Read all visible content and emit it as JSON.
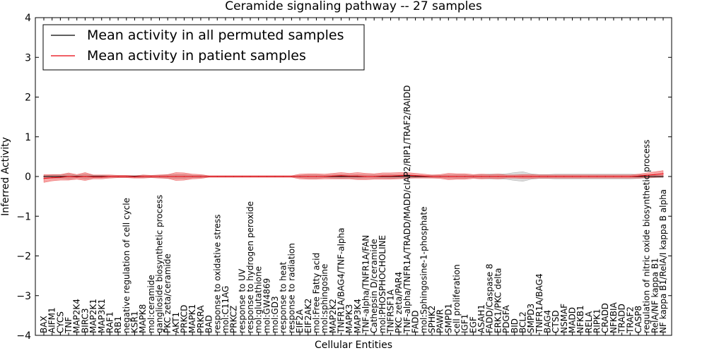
{
  "chart_data": {
    "type": "line",
    "title": "Ceramide signaling pathway -- 27 samples",
    "xlabel": "Cellular Entities",
    "ylabel": "Inferred Activity",
    "ylim": [
      -4,
      4
    ],
    "yticks": [
      4,
      3,
      2,
      1,
      0,
      -1,
      -2,
      -3,
      -4
    ],
    "ytick_labels": [
      "4",
      "3",
      "2",
      "1",
      "0",
      "−1",
      "−2",
      "−3",
      "−4"
    ],
    "legend_position": "top-left",
    "categories": [
      "BAX",
      "AIFM1",
      "CYCS",
      "TNF",
      "MAP2K4",
      "BIRC3",
      "MAP2K1",
      "MAP3K1",
      "RAF1",
      "RB1",
      "negative regulation of cell cycle",
      "KSR1",
      "MAPK8",
      "mol:ceramide",
      "ganglioside biosynthetic process",
      "PKC zeta/ceramide",
      "AKT1",
      "PRKCD",
      "MAPK1",
      "PRKRA",
      "BAD",
      "response to oxidative stress",
      "mol:C11AG",
      "PRKCZ",
      "response to UV",
      "response to hydrogen peroxide",
      "mol:glutathione",
      "mol:GW4869",
      "mol:GD3",
      "response to heat",
      "response to radiation",
      "EIF2A",
      "EIF2AK2",
      "mol:Free Fatty acid",
      "mol:sphingosine",
      "MAP2K2",
      "TNFR1A/BAG4/TNF-alpha",
      "MAPK3",
      "MAP3K4",
      "TNF-alpha/TNFR1A/FAN",
      "Cathepsin D/ceramide",
      "mol:PHOSPHOCHOLINE",
      "TNFRSF1A",
      "PKC zeta/PAR4",
      "TNF-alpha/TNFR1A/TRADD/MADD/cIAP2/RIP1/TRAF2/RAIDD",
      "FADD",
      "mol:Sphingosine-1-phosphate",
      "SPHK2",
      "PAWR",
      "SMPD1",
      "cell proliferation",
      "IGF1",
      "EGF",
      "ASAH1",
      "FADD/Caspase 8",
      "ERK1/PKC delta",
      "PDGFA",
      "BID",
      "BCL2",
      "SMPD3",
      "TNFR1A/BAG4",
      "BAG4",
      "CTSD",
      "NSMAF",
      "MADD",
      "NFKB1",
      "RELA",
      "RIPK1",
      "CRADD",
      "NFKBIA",
      "TRADD",
      "TRAF2",
      "CASP8",
      "regulation of nitric oxide biosynthetic process",
      "RelA/NF kappa B1",
      "NF kappa B1/RelA/I kappa B alpha"
    ],
    "series": [
      {
        "name": "Mean activity in all permuted samples",
        "color": "#000000",
        "values": [
          0,
          0,
          0,
          0,
          0,
          0,
          0,
          0,
          0,
          0,
          0,
          0,
          0,
          0,
          0,
          0,
          0,
          0,
          0,
          0,
          0,
          0,
          0,
          0,
          0,
          0,
          0,
          0,
          0,
          0,
          0,
          0,
          0,
          0,
          0,
          0,
          0,
          0,
          0,
          0,
          0,
          0,
          0,
          0,
          0,
          0,
          0,
          0,
          0,
          0,
          0,
          0,
          0,
          0,
          0,
          0,
          0,
          0,
          0,
          0,
          0,
          0,
          0,
          0,
          0,
          0,
          0,
          0,
          0,
          0,
          0,
          0,
          0,
          0,
          0,
          0
        ],
        "band": [
          0.02,
          0.04,
          0.04,
          0.06,
          0.03,
          0.06,
          0.03,
          0.03,
          0.02,
          0.02,
          0.02,
          0.02,
          0.03,
          0.02,
          0.03,
          0.04,
          0.05,
          0.05,
          0.03,
          0.03,
          0.01,
          0.01,
          0.01,
          0.01,
          0.01,
          0.01,
          0.01,
          0.01,
          0.01,
          0.01,
          0.01,
          0.03,
          0.04,
          0.04,
          0.03,
          0.04,
          0.05,
          0.04,
          0.05,
          0.04,
          0.04,
          0.04,
          0.05,
          0.04,
          0.05,
          0.03,
          0.02,
          0.03,
          0.03,
          0.04,
          0.04,
          0.04,
          0.03,
          0.05,
          0.06,
          0.06,
          0.07,
          0.1,
          0.12,
          0.07,
          0.05,
          0.05,
          0.06,
          0.06,
          0.06,
          0.06,
          0.06,
          0.06,
          0.06,
          0.06,
          0.06,
          0.06,
          0.05,
          0.04,
          0.03,
          0.03
        ]
      },
      {
        "name": "Mean activity in patient samples",
        "color": "#e8000b",
        "values": [
          -0.05,
          -0.03,
          -0.02,
          0.0,
          -0.01,
          0.0,
          -0.01,
          -0.01,
          0.0,
          0.0,
          0.0,
          -0.01,
          0.0,
          0.0,
          0.0,
          0.0,
          0.0,
          0.0,
          0.0,
          0.0,
          0.0,
          0.0,
          0.0,
          0.0,
          0.0,
          0.0,
          0.0,
          0.0,
          0.0,
          0.0,
          0.0,
          0.0,
          0.0,
          0.0,
          0.0,
          0.01,
          0.02,
          0.01,
          0.01,
          0.0,
          0.0,
          0.01,
          0.01,
          0.02,
          0.03,
          0.02,
          0.01,
          0.0,
          0.0,
          0.0,
          0.0,
          0.0,
          0.0,
          0.0,
          0.0,
          0.0,
          0.0,
          0.0,
          0.0,
          0.0,
          0.0,
          0.0,
          0.0,
          0.0,
          0.0,
          0.0,
          0.0,
          0.0,
          0.0,
          0.0,
          0.0,
          0.0,
          0.01,
          0.03,
          0.05,
          0.07
        ],
        "band": [
          0.1,
          0.08,
          0.07,
          0.09,
          0.06,
          0.1,
          0.05,
          0.05,
          0.04,
          0.03,
          0.03,
          0.03,
          0.04,
          0.03,
          0.04,
          0.05,
          0.1,
          0.09,
          0.06,
          0.05,
          0.02,
          0.02,
          0.02,
          0.02,
          0.02,
          0.02,
          0.02,
          0.02,
          0.02,
          0.02,
          0.02,
          0.06,
          0.07,
          0.07,
          0.06,
          0.07,
          0.08,
          0.07,
          0.09,
          0.08,
          0.07,
          0.08,
          0.08,
          0.08,
          0.07,
          0.06,
          0.05,
          0.04,
          0.05,
          0.08,
          0.07,
          0.07,
          0.05,
          0.06,
          0.05,
          0.06,
          0.04,
          0.04,
          0.05,
          0.05,
          0.04,
          0.04,
          0.04,
          0.04,
          0.04,
          0.04,
          0.04,
          0.04,
          0.04,
          0.04,
          0.04,
          0.04,
          0.05,
          0.06,
          0.07,
          0.08
        ]
      }
    ]
  }
}
